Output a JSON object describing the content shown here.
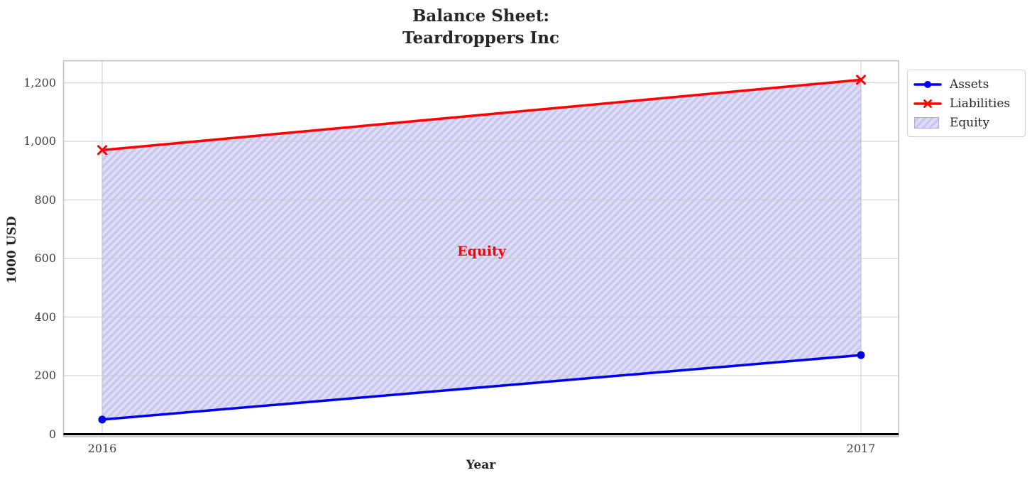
{
  "figure": {
    "title": "Balance Sheet:\nTeardroppers Inc",
    "background_color": "#ffffff"
  },
  "chart_data": {
    "type": "area",
    "title": "Balance Sheet:\nTeardroppers Inc",
    "xlabel": "Year",
    "ylabel": "1000 USD",
    "x": [
      2016,
      2017
    ],
    "xtick_labels": [
      "2016",
      "2017"
    ],
    "yticks": [
      0,
      200,
      400,
      600,
      800,
      1000,
      1200
    ],
    "ytick_labels": [
      "0",
      "200",
      "400",
      "600",
      "800",
      "1,000",
      "1,200"
    ],
    "ylim": [
      -8,
      1276
    ],
    "xlim": [
      2015.95,
      2017.05
    ],
    "grid": true,
    "grid_color": "#c9c9c9",
    "spine_color": "#c2c2c2",
    "zero_baseline": {
      "value": 0,
      "color": "#000000",
      "width": 3
    },
    "series": [
      {
        "name": "Assets",
        "type": "line",
        "marker": "circle",
        "color": "#0000ee",
        "values": [
          50,
          270
        ]
      },
      {
        "name": "Liabilities",
        "type": "line",
        "marker": "x",
        "color": "#ff0000",
        "values": [
          970,
          1210
        ]
      }
    ],
    "fill_between": {
      "name": "Equity",
      "between": [
        "Assets",
        "Liabilities"
      ],
      "facecolor": "#dedef6",
      "hatch": "//",
      "hatch_color": "#c7c7f0",
      "edge_color": "#a9a9e2"
    },
    "annotation": {
      "text": "Equity",
      "color": "#ff0000",
      "x": 2016.5,
      "y": 625
    },
    "legend": {
      "position": "outside-upper-right",
      "items": [
        {
          "label": "Assets",
          "sample": "circle-line",
          "color": "#0000ee"
        },
        {
          "label": "Liabilities",
          "sample": "x-line",
          "color": "#ff0000"
        },
        {
          "label": "Equity",
          "sample": "hatch-patch",
          "color": "#dedef6"
        }
      ]
    }
  }
}
